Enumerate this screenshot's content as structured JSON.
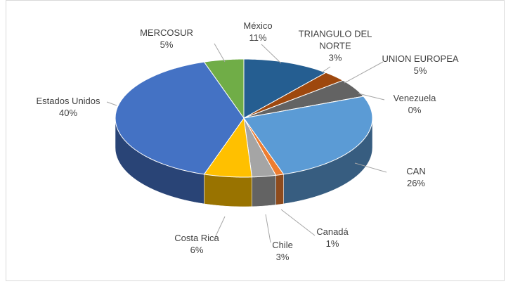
{
  "chart_data": {
    "type": "pie",
    "three_d": true,
    "categories": [
      "México",
      "TRIANGULO DEL NORTE",
      "UNION EUROPEA",
      "Venezuela",
      "CAN",
      "Canadá",
      "Chile",
      "Costa Rica",
      "Estados Unidos",
      "MERCOSUR"
    ],
    "values": [
      11,
      3,
      5,
      0,
      26,
      1,
      3,
      6,
      40,
      5
    ],
    "value_labels": [
      "11%",
      "3%",
      "5%",
      "0%",
      "26%",
      "1%",
      "3%",
      "6%",
      "40%",
      "5%"
    ],
    "colors": [
      "#255e91",
      "#9e480e",
      "#636363",
      "#997300",
      "#5b9bd5",
      "#ed7d31",
      "#a5a5a5",
      "#ffc000",
      "#4472c4",
      "#70ad47"
    ]
  }
}
